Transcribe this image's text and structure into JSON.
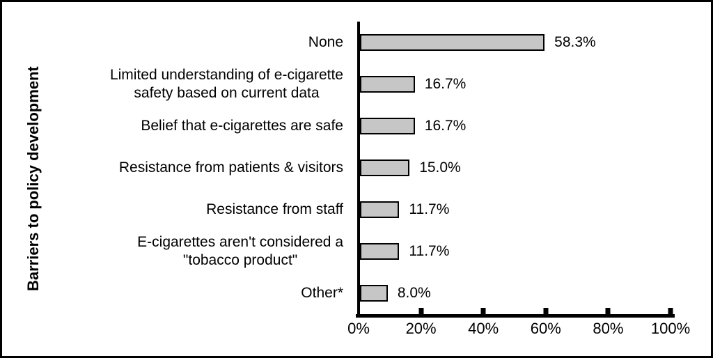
{
  "chart_data": {
    "type": "bar",
    "orientation": "horizontal",
    "title": "",
    "xlabel": "",
    "ylabel": "Barriers to policy development",
    "xlim": [
      0,
      100
    ],
    "grid": false,
    "legend": false,
    "bar_fill_color": "#c6c6c6",
    "bar_border_color": "#000000",
    "axis_color": "#000000",
    "categories": [
      "None",
      "Limited understanding of e-cigarette safety based on current data",
      "Belief that e-cigarettes are safe",
      "Resistance from patients & visitors",
      "Resistance from staff",
      "E-cigarettes aren't considered a \"tobacco product\"",
      "Other*"
    ],
    "category_label_lines": [
      [
        "None"
      ],
      [
        "Limited understanding of e-cigarette",
        "safety based on current data"
      ],
      [
        "Belief that e-cigarettes are safe"
      ],
      [
        "Resistance from patients & visitors"
      ],
      [
        "Resistance from staff"
      ],
      [
        "E-cigarettes aren't considered a",
        "\"tobacco product\""
      ],
      [
        "Other*"
      ]
    ],
    "values": [
      58.3,
      16.7,
      16.7,
      15.0,
      11.7,
      11.7,
      8.0
    ],
    "value_labels": [
      "58.3%",
      "16.7%",
      "16.7%",
      "15.0%",
      "11.7%",
      "11.7%",
      "8.0%"
    ],
    "x_tick_values": [
      0,
      20,
      40,
      60,
      80,
      100
    ],
    "x_tick_labels": [
      "0%",
      "20%",
      "40%",
      "60%",
      "80%",
      "100%"
    ]
  }
}
